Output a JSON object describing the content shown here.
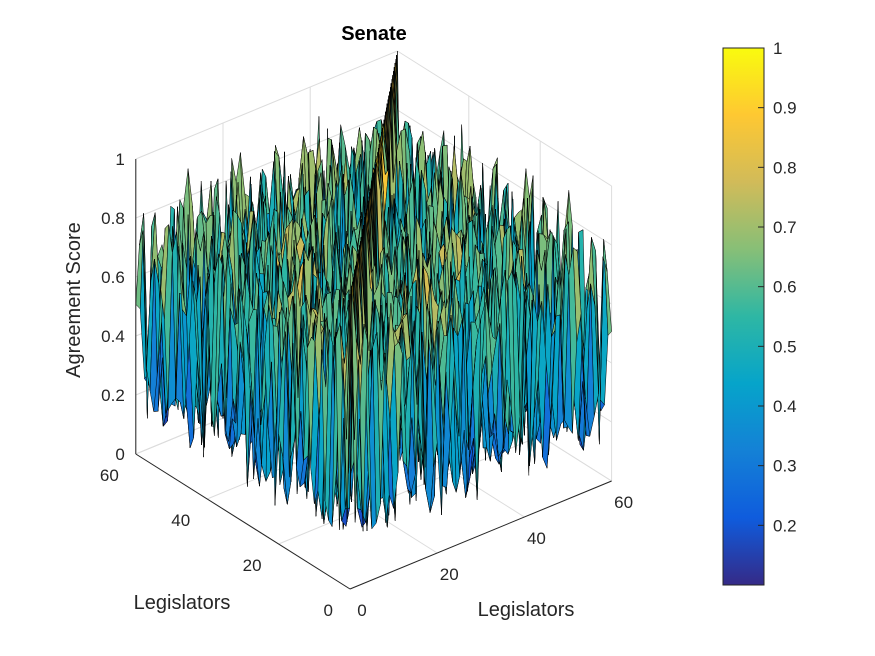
{
  "chart_data": {
    "type": "surface",
    "title": "Senate",
    "xlabel": "Legislators",
    "ylabel": "Legislators",
    "zlabel": "Agreement Score",
    "xlim": [
      0,
      60
    ],
    "ylim": [
      0,
      60
    ],
    "zlim": [
      0,
      1
    ],
    "x_ticks": [
      "0",
      "20",
      "40",
      "60"
    ],
    "y_ticks": [
      "0",
      "20",
      "40",
      "60"
    ],
    "z_ticks": [
      "0",
      "0.2",
      "0.4",
      "0.6",
      "0.8",
      "1"
    ],
    "grid": true,
    "colormap": "parula",
    "diagonal_value": 1,
    "offdiagonal_range": [
      0.1,
      0.9
    ],
    "grid_size": 60,
    "colorbar": {
      "range": [
        0.1,
        1
      ],
      "ticks": [
        "0.2",
        "0.3",
        "0.4",
        "0.5",
        "0.6",
        "0.7",
        "0.8",
        "0.9",
        "1"
      ]
    }
  },
  "colors": {
    "parula": [
      "#352a87",
      "#0f5cdd",
      "#1481d6",
      "#06a4ca",
      "#2eb7a4",
      "#87bf77",
      "#d1bb59",
      "#fec832",
      "#f9fb0e"
    ],
    "edge": "#000000",
    "grid": "#dcdcdc"
  }
}
